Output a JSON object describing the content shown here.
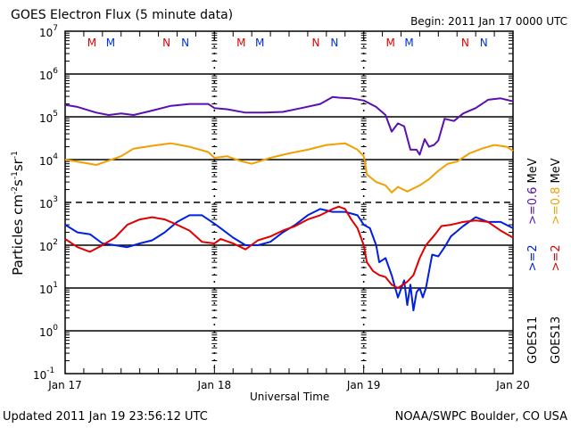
{
  "chart_data": {
    "type": "line",
    "title": "GOES Electron Flux (5 minute data)",
    "subtitle": "Begin: 2011 Jan 17 0000 UTC",
    "xlabel": "Universal Time",
    "ylabel": "Particles cm-2 s-1 sr-1",
    "yscale": "log",
    "ylim": [
      0.1,
      10000000
    ],
    "xlim_hours": [
      0,
      72
    ],
    "x_unit": "hours since 2011 Jan 17 00:00 UTC",
    "x_tick_labels": [
      {
        "hour": 0,
        "label": "Jan 17"
      },
      {
        "hour": 24,
        "label": "Jan 18"
      },
      {
        "hour": 48,
        "label": "Jan 19"
      },
      {
        "hour": 72,
        "label": "Jan 20"
      }
    ],
    "y_tick_labels": [
      {
        "exp": 7,
        "label": "10",
        "sup": "7"
      },
      {
        "exp": 6,
        "label": "10",
        "sup": "6"
      },
      {
        "exp": 5,
        "label": "10",
        "sup": "5"
      },
      {
        "exp": 4,
        "label": "10",
        "sup": "4"
      },
      {
        "exp": 3,
        "label": "10",
        "sup": "3"
      },
      {
        "exp": 2,
        "label": "10",
        "sup": "2"
      },
      {
        "exp": 1,
        "label": "10",
        "sup": "1"
      },
      {
        "exp": 0,
        "label": "10",
        "sup": "0"
      },
      {
        "exp": -1,
        "label": "10",
        "sup": "-1"
      }
    ],
    "gridlines_decades": [
      6,
      5,
      4,
      2,
      1,
      0
    ],
    "threshold_line": {
      "value": 1000,
      "style": "dashed"
    },
    "local_time_markers": [
      {
        "hour": 4.3,
        "letter": "M",
        "color": "#e00000"
      },
      {
        "hour": 7.3,
        "letter": "M",
        "color": "#0030e0"
      },
      {
        "hour": 16.3,
        "letter": "N",
        "color": "#e00000"
      },
      {
        "hour": 19.3,
        "letter": "N",
        "color": "#0030e0"
      },
      {
        "hour": 28.3,
        "letter": "M",
        "color": "#e00000"
      },
      {
        "hour": 31.3,
        "letter": "M",
        "color": "#0030e0"
      },
      {
        "hour": 40.3,
        "letter": "N",
        "color": "#e00000"
      },
      {
        "hour": 43.3,
        "letter": "N",
        "color": "#0030e0"
      },
      {
        "hour": 52.3,
        "letter": "M",
        "color": "#e00000"
      },
      {
        "hour": 55.3,
        "letter": "M",
        "color": "#0030e0"
      },
      {
        "hour": 64.3,
        "letter": "N",
        "color": "#e00000"
      },
      {
        "hour": 67.3,
        "letter": "N",
        "color": "#0030e0"
      }
    ],
    "series": [
      {
        "name": "GOES11 >=0.6 MeV",
        "color": "#5a10b0",
        "x": [
          0,
          2,
          5,
          7,
          9,
          11,
          14,
          17,
          20,
          23,
          24,
          26,
          29,
          32,
          35,
          38,
          41,
          43,
          44,
          46,
          48,
          50,
          51.5,
          52.5,
          53.5,
          54.5,
          55.5,
          56.5,
          57,
          57.8,
          58.5,
          59.3,
          60,
          61,
          62.5,
          64,
          66,
          68,
          70,
          72
        ],
        "values": [
          190000,
          170000,
          125000,
          110000,
          120000,
          110000,
          140000,
          180000,
          200000,
          200000,
          160000,
          150000,
          125000,
          125000,
          130000,
          160000,
          200000,
          290000,
          280000,
          270000,
          240000,
          170000,
          110000,
          45000,
          70000,
          60000,
          17000,
          17000,
          13000,
          30000,
          20000,
          22000,
          28000,
          90000,
          80000,
          120000,
          160000,
          250000,
          270000,
          230000
        ]
      },
      {
        "name": "GOES13 >=0.8 MeV",
        "color": "#f0a000",
        "x": [
          0,
          2,
          5,
          7,
          9,
          11,
          14,
          17,
          20,
          23,
          24,
          26,
          28,
          30,
          33,
          36,
          39,
          42,
          45,
          47,
          48,
          48.5,
          50,
          51.5,
          52.5,
          53.5,
          55,
          57,
          58.5,
          60,
          61.5,
          63,
          65,
          67,
          69,
          71,
          72
        ],
        "values": [
          10000,
          9000,
          7500,
          9500,
          12000,
          18000,
          21000,
          24000,
          20000,
          15000,
          11000,
          12000,
          9500,
          8000,
          11000,
          14000,
          17000,
          22000,
          24000,
          17000,
          12000,
          4500,
          3000,
          2500,
          1700,
          2300,
          1800,
          2500,
          3500,
          5500,
          8000,
          9000,
          14000,
          18000,
          22000,
          20000,
          16000
        ]
      },
      {
        "name": "GOES11 >=2 MeV",
        "color": "#0020e0",
        "x": [
          0,
          2,
          4,
          6,
          8,
          10,
          12,
          14,
          16,
          18,
          20,
          22,
          24,
          25,
          27,
          29,
          31,
          33,
          35,
          37,
          39,
          41,
          43,
          45,
          47,
          48,
          49,
          50,
          50.5,
          51.5,
          52.5,
          53.5,
          54.5,
          55,
          55.5,
          56,
          56.5,
          57,
          57.5,
          58,
          59,
          60,
          61,
          62,
          64,
          66,
          68,
          70,
          72
        ],
        "values": [
          300,
          200,
          180,
          110,
          100,
          90,
          110,
          130,
          200,
          350,
          500,
          500,
          320,
          250,
          150,
          100,
          100,
          120,
          200,
          300,
          500,
          700,
          600,
          600,
          500,
          300,
          250,
          100,
          40,
          50,
          20,
          6,
          15,
          4,
          12,
          3,
          8,
          10,
          6,
          10,
          60,
          55,
          90,
          160,
          280,
          450,
          350,
          350,
          250
        ]
      },
      {
        "name": "GOES13 >=2 MeV",
        "color": "#e00000",
        "x": [
          0,
          2,
          4,
          6,
          8,
          10,
          12,
          14,
          16,
          18,
          20,
          22,
          24,
          25,
          27,
          29,
          31,
          33,
          35,
          37,
          39,
          41,
          43,
          44,
          45,
          46,
          47,
          48,
          48.5,
          49.5,
          50.5,
          51.5,
          52.5,
          53.5,
          55,
          56,
          57,
          58,
          59.5,
          60.5,
          62,
          64,
          66,
          68,
          70,
          72
        ],
        "values": [
          140,
          90,
          70,
          100,
          150,
          300,
          400,
          450,
          400,
          300,
          220,
          120,
          110,
          140,
          110,
          80,
          130,
          160,
          220,
          280,
          400,
          500,
          700,
          800,
          700,
          400,
          250,
          100,
          40,
          25,
          20,
          18,
          12,
          10,
          14,
          20,
          50,
          100,
          180,
          280,
          300,
          350,
          380,
          350,
          220,
          150
        ]
      }
    ],
    "legend": {
      "placement": "right, rotated",
      "entries": [
        {
          "text": "GOES11",
          "color": "#000000"
        },
        {
          "text": ">=2",
          "color": "#0020e0"
        },
        {
          "text": ">=0.6",
          "color": "#5a10b0"
        },
        {
          "text": "MeV",
          "color": "#000000"
        },
        {
          "text": "GOES13",
          "color": "#000000"
        },
        {
          "text": ">=2",
          "color": "#e00000"
        },
        {
          "text": ">=0.8",
          "color": "#f0a000"
        },
        {
          "text": "MeV",
          "color": "#000000"
        }
      ]
    }
  },
  "footer": {
    "updated": "Updated 2011 Jan 19 23:56:12 UTC",
    "credit": "NOAA/SWPC Boulder, CO USA"
  }
}
